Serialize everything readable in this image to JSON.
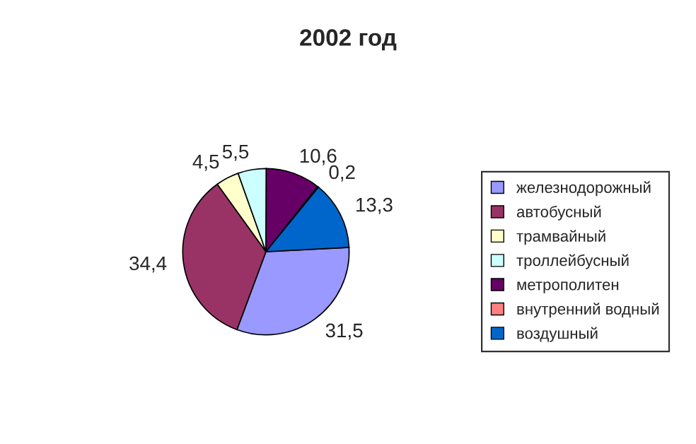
{
  "chart_data": {
    "type": "pie",
    "title": "2002 год",
    "categories": [
      "железнодорожный",
      "автобусный",
      "трамвайный",
      "троллейбусный",
      "метрополитен",
      "внутренний водный",
      "воздушный"
    ],
    "values": [
      31.5,
      34.4,
      4.5,
      5.5,
      10.6,
      0.2,
      13.3
    ],
    "value_labels": [
      "31,5",
      "34,4",
      "4,5",
      "5,5",
      "10,6",
      "0,2",
      "13,3"
    ],
    "colors": [
      "#9999ff",
      "#993366",
      "#ffffcc",
      "#ccffff",
      "#660066",
      "#ff8080",
      "#0066cc"
    ],
    "legend": "right"
  }
}
